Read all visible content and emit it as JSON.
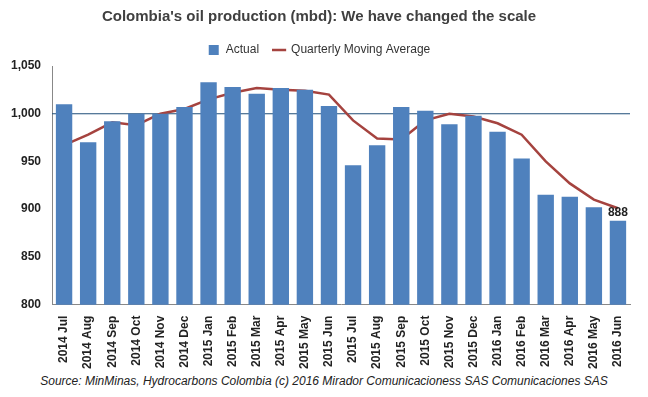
{
  "chart_data": {
    "type": "bar",
    "title": "Colombia's oil production (mbd): We have changed the scale",
    "source": "Source: MinMinas, Hydrocarbons Colombia (c) 2016 Mirador Comunicacioness SAS Comunicaciones SAS",
    "categories": [
      "2014 Jul",
      "2014 Aug",
      "2014 Sep",
      "2014 Oct",
      "2014 Nov",
      "2014 Dec",
      "2015 Jan",
      "2015 Feb",
      "2015 Mar",
      "2015 Apr",
      "2015 May",
      "2015 Jun",
      "2015 Jul",
      "2015 Aug",
      "2015 Sep",
      "2015 Oct",
      "2015 Nov",
      "2015 Dec",
      "2016 Jan",
      "2016 Feb",
      "2016 Mar",
      "2016 Apr",
      "2016 May",
      "2016 Jun"
    ],
    "series": [
      {
        "name": "Actual",
        "type": "bar",
        "color": "#4f81bd",
        "values": [
          1010,
          970,
          992,
          1000,
          1000,
          1007,
          1033,
          1028,
          1021,
          1027,
          1025,
          1008,
          946,
          967,
          1007,
          1003,
          989,
          998,
          981,
          953,
          915,
          913,
          902,
          888
        ],
        "value_labels": [
          null,
          null,
          null,
          null,
          null,
          null,
          null,
          null,
          null,
          null,
          null,
          null,
          null,
          null,
          null,
          null,
          null,
          null,
          null,
          null,
          null,
          null,
          null,
          "888"
        ]
      },
      {
        "name": "Quarterly Moving Average",
        "type": "line",
        "color": "#a5433f",
        "values": [
          967,
          978,
          991,
          988,
          1000,
          1005,
          1015,
          1022,
          1027,
          1025,
          1024,
          1020,
          993,
          974,
          973,
          993,
          1000,
          997,
          990,
          978,
          950,
          927,
          910,
          901
        ]
      }
    ],
    "ylim": [
      800,
      1050
    ],
    "yticks": [
      800,
      850,
      900,
      950,
      {
        "value": 1000,
        "label": "1,000"
      },
      {
        "value": 1050,
        "label": "1,050"
      }
    ],
    "reference_line": 1000,
    "grid": false,
    "legend": "top",
    "data_labels": true
  }
}
